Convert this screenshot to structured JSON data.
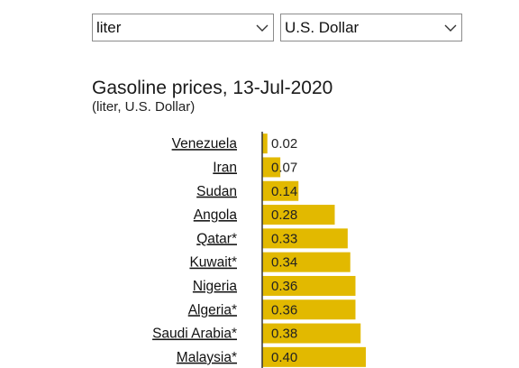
{
  "controls": {
    "unit_select": {
      "value": "liter"
    },
    "currency_select": {
      "value": "U.S. Dollar"
    }
  },
  "chart_data": {
    "type": "bar",
    "orientation": "horizontal",
    "title": "Gasoline prices, 13-Jul-2020",
    "subtitle": "(liter, U.S. Dollar)",
    "bar_color": "#e2b900",
    "axis_color": "#333333",
    "categories": [
      "Venezuela",
      "Iran",
      "Sudan",
      "Angola",
      "Qatar*",
      "Kuwait*",
      "Nigeria",
      "Algeria*",
      "Saudi Arabia*",
      "Malaysia*"
    ],
    "values": [
      0.02,
      0.07,
      0.14,
      0.28,
      0.33,
      0.34,
      0.36,
      0.36,
      0.38,
      0.4
    ],
    "value_labels": [
      "0.02",
      "0.07",
      "0.14",
      "0.28",
      "0.33",
      "0.34",
      "0.36",
      "0.36",
      "0.38",
      "0.40"
    ],
    "xlim": [
      0,
      0.4
    ]
  }
}
